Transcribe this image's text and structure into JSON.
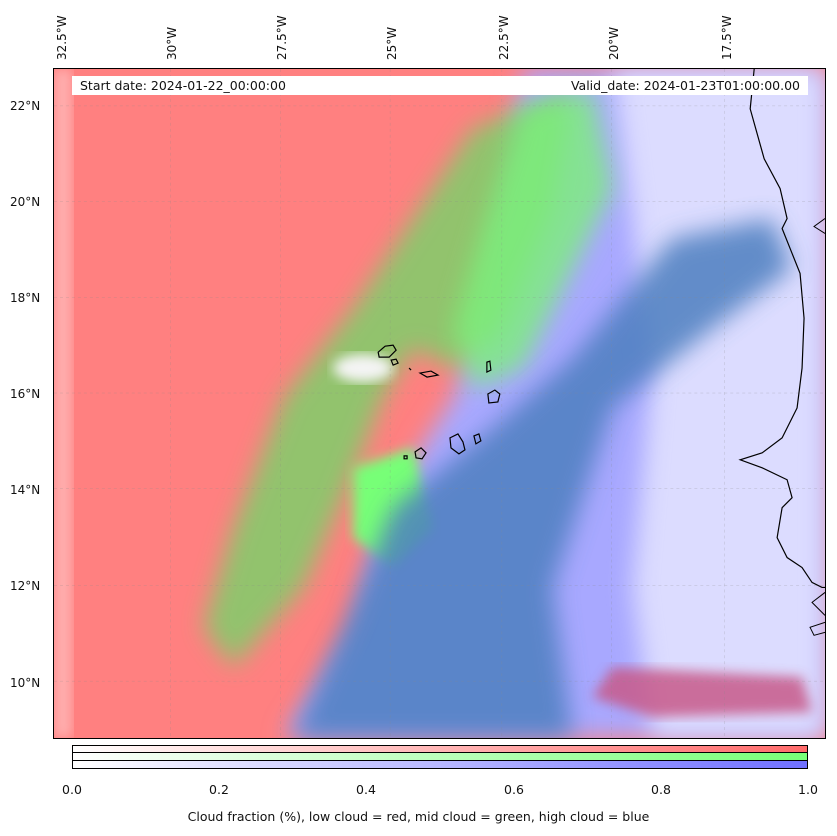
{
  "map": {
    "info_left": "Start date: 2024-01-22_00:00:00",
    "info_right": "Valid_date: 2024-01-23T01:00:00.00",
    "lon_labels": [
      "32.5°W",
      "30°W",
      "27.5°W",
      "25°W",
      "22.5°W",
      "20°W",
      "17.5°W"
    ],
    "lat_labels": [
      "22°N",
      "20°N",
      "18°N",
      "16°N",
      "14°N",
      "12°N",
      "10°N"
    ],
    "colors": {
      "low_cloud": "#ff8080",
      "mid_cloud": "#77ff77",
      "high_cloud": "#7070ff",
      "coastline": "#000000"
    }
  },
  "colorbar": {
    "ticks": [
      "0.0",
      "0.2",
      "0.4",
      "0.6",
      "0.8",
      "1.0"
    ],
    "caption": "Cloud fraction (%), low cloud = red, mid cloud = green, high cloud = blue"
  }
}
